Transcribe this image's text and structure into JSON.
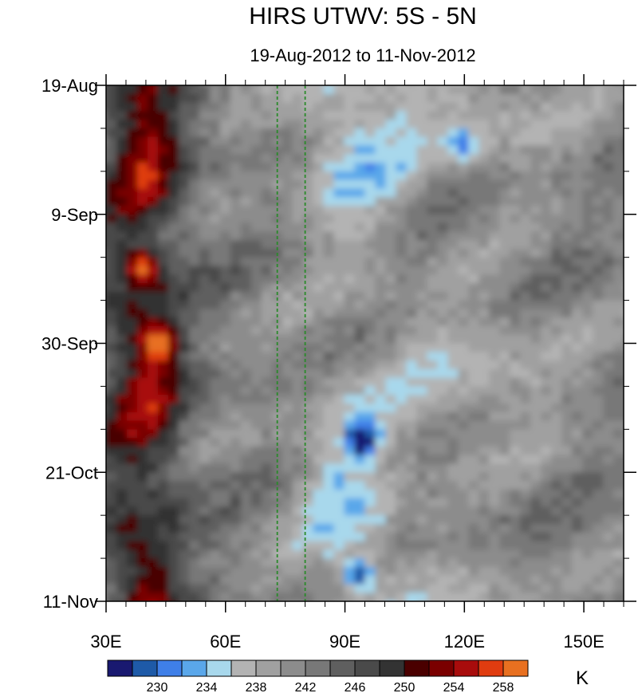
{
  "chart_data": {
    "type": "heatmap",
    "title": "HIRS UTWV: 5S - 5N",
    "subtitle": "19-Aug-2012 to 11-Nov-2012",
    "x_axis": {
      "range": [
        30,
        160
      ],
      "ticks": [
        {
          "value": 30,
          "label": "30E"
        },
        {
          "value": 60,
          "label": "60E"
        },
        {
          "value": 90,
          "label": "90E"
        },
        {
          "value": 120,
          "label": "120E"
        },
        {
          "value": 150,
          "label": "150E"
        }
      ]
    },
    "y_axis": {
      "range_days": [
        0,
        84
      ],
      "ticks": [
        {
          "day": 0,
          "label": "19-Aug"
        },
        {
          "day": 21,
          "label": "9-Sep"
        },
        {
          "day": 42,
          "label": "30-Sep"
        },
        {
          "day": 63,
          "label": "21-Oct"
        },
        {
          "day": 84,
          "label": "11-Nov"
        }
      ],
      "minor_tick_days": 7
    },
    "reference_lines_lon": [
      73,
      80
    ],
    "reference_line_color": "#2a8a2a",
    "colorbar": {
      "unit": "K",
      "levels": [
        228,
        230,
        232,
        234,
        236,
        238,
        240,
        242,
        244,
        246,
        248,
        250,
        252,
        254,
        256,
        258
      ],
      "labels": [
        "230",
        "234",
        "238",
        "242",
        "246",
        "250",
        "254",
        "258"
      ],
      "colors": [
        "#191970",
        "#1e5aa8",
        "#3f7fe8",
        "#5aa7ea",
        "#a8d8ec",
        "#b3b3b3",
        "#a0a0a0",
        "#8c8c8c",
        "#787878",
        "#5f5f5f",
        "#4a4a4a",
        "#333333",
        "#4a0000",
        "#7a0000",
        "#a80c0c",
        "#e03c10",
        "#e87020"
      ]
    },
    "field_summary": {
      "west_dry_band_lon": [
        30,
        55
      ],
      "max_K_features": [
        {
          "lon": 38,
          "day": 29,
          "value_K": 255
        },
        {
          "lon": 42,
          "day": 41,
          "value_K": 255
        }
      ],
      "moist_features": [
        {
          "lon": 93,
          "day": 57,
          "value_K": 228
        },
        {
          "lon": 92,
          "day": 79,
          "value_K": 229
        },
        {
          "lon": 118,
          "day": 9,
          "value_K": 233
        }
      ]
    }
  }
}
